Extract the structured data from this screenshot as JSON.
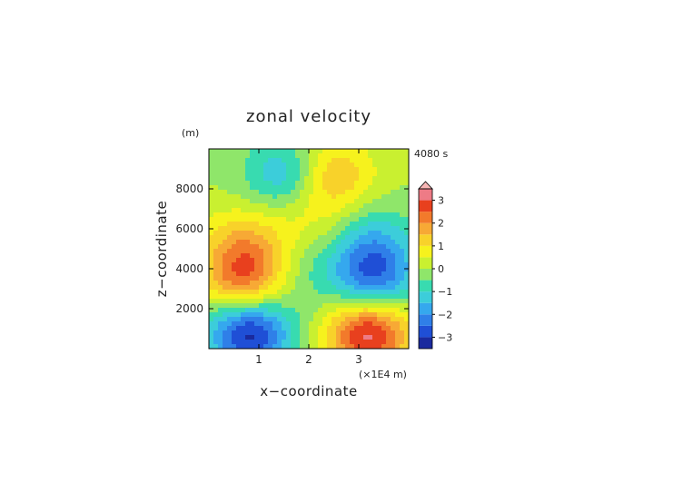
{
  "chart_data": {
    "type": "heatmap",
    "title": "zonal velocity",
    "time_label": "4080 s",
    "xlabel": "x−coordinate",
    "ylabel": "z−coordinate",
    "y_unit": "(m)",
    "x_unit": "(×1E4 m)",
    "xlim": [
      0,
      40000
    ],
    "ylim": [
      0,
      10000
    ],
    "x_ticks": [
      {
        "value": 10000,
        "label": "1"
      },
      {
        "value": 20000,
        "label": "2"
      },
      {
        "value": 30000,
        "label": "3"
      }
    ],
    "y_ticks": [
      {
        "value": 2000,
        "label": "2000"
      },
      {
        "value": 4000,
        "label": "4000"
      },
      {
        "value": 6000,
        "label": "6000"
      },
      {
        "value": 8000,
        "label": "8000"
      }
    ],
    "colorbar": {
      "ticks": [
        {
          "value": 3,
          "label": "3"
        },
        {
          "value": 2,
          "label": "2"
        },
        {
          "value": 1,
          "label": "1"
        },
        {
          "value": 0,
          "label": "0"
        },
        {
          "value": -1,
          "label": "−1"
        },
        {
          "value": -2,
          "label": "−2"
        },
        {
          "value": -3,
          "label": "−3"
        }
      ],
      "levels": [
        -3.5,
        -3,
        -2.5,
        -2,
        -1.5,
        -1,
        -0.5,
        0,
        0.5,
        1,
        1.5,
        2,
        2.5,
        3,
        3.5
      ],
      "colors": [
        "#1a2a9e",
        "#1f4fd6",
        "#2f7fe8",
        "#35a8ee",
        "#3ccdda",
        "#38dbb0",
        "#8fe66a",
        "#c9f030",
        "#f6f21d",
        "#f8d22a",
        "#f7a935",
        "#f27a2b",
        "#e8401e",
        "#ee7b86",
        "#f7b6b5"
      ],
      "extend": "max"
    },
    "field_features": [
      {
        "x": 8000,
        "z": 800,
        "value": -3.3,
        "kind": "min"
      },
      {
        "x": 32000,
        "z": 800,
        "value": 3.3,
        "kind": "max"
      },
      {
        "x": 7000,
        "z": 3400,
        "value": 2.3,
        "kind": "max"
      },
      {
        "x": 33000,
        "z": 3400,
        "value": -2.3,
        "kind": "min"
      },
      {
        "x": 7000,
        "z": 5300,
        "value": 1.3,
        "kind": "max"
      },
      {
        "x": 33000,
        "z": 5300,
        "value": -1.3,
        "kind": "min"
      },
      {
        "x": 16000,
        "z": 8700,
        "value": -1.8,
        "kind": "min"
      },
      {
        "x": 24000,
        "z": 8700,
        "value": 1.8,
        "kind": "max"
      },
      {
        "x": 20000,
        "z": 6500,
        "value": 0.6,
        "kind": "max"
      },
      {
        "x": 20000,
        "z": 3800,
        "value": -0.5,
        "kind": "min"
      }
    ]
  }
}
